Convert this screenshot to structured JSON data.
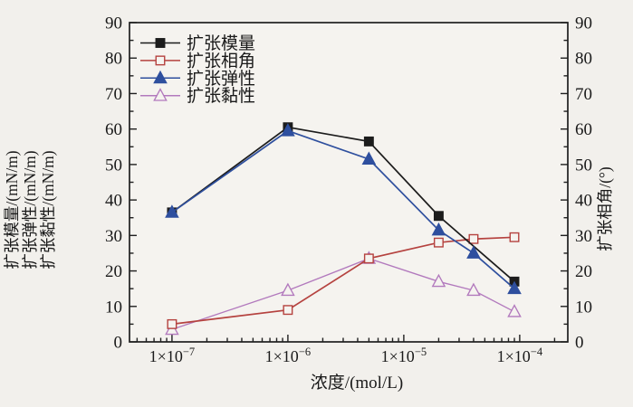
{
  "figure": {
    "background": "#f2f0ec",
    "plot_fill": "#f5f3ef",
    "axis_color": "#1f1f1f",
    "text_color": "#1a1a1a",
    "xlabel": "浓度/(mol/L)",
    "ylabels_left": [
      "扩张模量/(mN/m)",
      "扩张弹性/(mN/m)",
      "扩张黏性/(mN/m)"
    ],
    "ylabel_right": "扩张相角/(°)"
  },
  "chart_data": {
    "type": "line",
    "x_scale": "log",
    "x_min": 4.3e-08,
    "x_max": 0.00026,
    "x_major_ticks": [
      1e-07,
      1e-06,
      1e-05,
      0.0001
    ],
    "x_major_tick_labels": [
      "1×10⁻⁷",
      "1×10⁻⁶",
      "1×10⁻⁵",
      "1×10⁻⁴"
    ],
    "xlabel": "浓度/(mol/L)",
    "y_min": 0,
    "y_max": 90,
    "y_major_step": 10,
    "y_minor_step": 5,
    "y_major_tick_labels": [
      "0",
      "10",
      "20",
      "30",
      "40",
      "50",
      "60",
      "70",
      "80",
      "90"
    ],
    "grid": false,
    "left_axis_title_lines": [
      "扩张模量/(mN/m)",
      "扩张弹性/(mN/m)",
      "扩张黏性/(mN/m)"
    ],
    "right_axis_title": "扩张相角/(°)",
    "series": [
      {
        "name": "扩张模量",
        "axis": "left",
        "units": "mN/m",
        "marker": "square",
        "fill": "solid",
        "color": "#1c1c1c",
        "x": [
          1e-07,
          1e-06,
          5e-06,
          2e-05,
          9e-05
        ],
        "y": [
          36.5,
          60.5,
          56.5,
          35.5,
          17
        ]
      },
      {
        "name": "扩张相角",
        "axis": "right",
        "units": "°",
        "marker": "square",
        "fill": "open",
        "color": "#b5423f",
        "x": [
          1e-07,
          1e-06,
          5e-06,
          2e-05,
          4e-05,
          9e-05
        ],
        "y": [
          5,
          9,
          23.5,
          28,
          29,
          29.5
        ]
      },
      {
        "name": "扩张弹性",
        "axis": "left",
        "units": "mN/m",
        "marker": "triangle",
        "fill": "solid",
        "color": "#2e4f9e",
        "x": [
          1e-07,
          1e-06,
          5e-06,
          2e-05,
          4e-05,
          9e-05
        ],
        "y": [
          36.5,
          59.5,
          51.5,
          31.5,
          25,
          15
        ]
      },
      {
        "name": "扩张黏性",
        "axis": "left",
        "units": "mN/m",
        "marker": "triangle",
        "fill": "open",
        "color": "#b279bd",
        "x": [
          1e-07,
          1e-06,
          5e-06,
          2e-05,
          4e-05,
          9e-05
        ],
        "y": [
          3.5,
          14.5,
          23.5,
          17,
          14.5,
          8.5
        ]
      }
    ],
    "legend": {
      "position": "upper-left",
      "entries": [
        "扩张模量",
        "扩张相角",
        "扩张弹性",
        "扩张黏性"
      ]
    }
  }
}
